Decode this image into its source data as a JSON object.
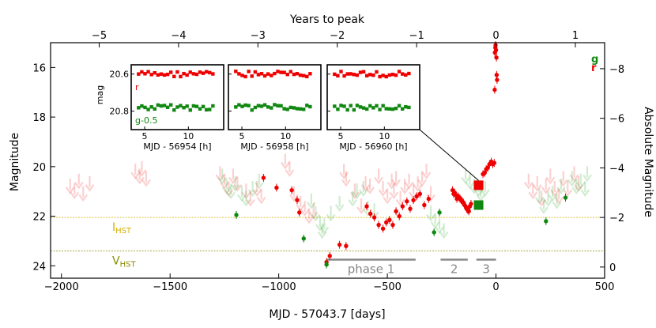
{
  "chart_data": {
    "type": "scatter",
    "xlabel": "MJD - 57043.7 [days]",
    "ylabel": "Magnitude",
    "ylabel_right": "Absolute Magnitude",
    "xlabel_top": "Years to peak",
    "xlim": [
      -2050,
      500
    ],
    "ylim": [
      24.5,
      15.0
    ],
    "yticks": [
      16,
      18,
      20,
      22,
      24
    ],
    "xticks": [
      -2000,
      -1500,
      -1000,
      -500,
      0,
      500
    ],
    "top_ticks": [
      -5,
      -4,
      -3,
      -2,
      -1,
      0,
      1
    ],
    "right_ticks": [
      -8,
      -6,
      -4,
      -2,
      0
    ],
    "reference_lines": [
      {
        "label": "I",
        "subscript": "HST",
        "mag": 22.05,
        "color": "#d4b000"
      },
      {
        "label": "V",
        "subscript": "HST",
        "mag": 23.4,
        "color": "#8a8a00"
      }
    ],
    "phases": [
      {
        "label": "phase 1",
        "x0": -780,
        "x1": -370
      },
      {
        "label": "2",
        "x0": -255,
        "x1": -130
      },
      {
        "label": "3",
        "x0": -90,
        "x1": 0
      }
    ],
    "series": [
      {
        "name": "r",
        "color": "#ee0000",
        "points": [
          [
            -1070,
            20.45
          ],
          [
            -1010,
            20.85
          ],
          [
            -940,
            20.95
          ],
          [
            -915,
            21.35
          ],
          [
            -905,
            21.85
          ],
          [
            -780,
            23.85
          ],
          [
            -765,
            23.6
          ],
          [
            -720,
            23.15
          ],
          [
            -690,
            23.2
          ],
          [
            -595,
            21.6
          ],
          [
            -578,
            21.9
          ],
          [
            -560,
            22.05
          ],
          [
            -540,
            22.35
          ],
          [
            -520,
            22.5
          ],
          [
            -505,
            22.25
          ],
          [
            -490,
            22.15
          ],
          [
            -475,
            22.35
          ],
          [
            -460,
            21.8
          ],
          [
            -445,
            22.0
          ],
          [
            -430,
            21.6
          ],
          [
            -410,
            21.4
          ],
          [
            -395,
            21.7
          ],
          [
            -380,
            21.35
          ],
          [
            -365,
            21.2
          ],
          [
            -350,
            21.1
          ],
          [
            -330,
            21.55
          ],
          [
            -310,
            21.3
          ],
          [
            -200,
            20.95
          ],
          [
            -195,
            21.1
          ],
          [
            -190,
            21.05
          ],
          [
            -185,
            21.15
          ],
          [
            -180,
            21.3
          ],
          [
            -175,
            21.2
          ],
          [
            -170,
            21.25
          ],
          [
            -165,
            21.3
          ],
          [
            -160,
            21.35
          ],
          [
            -155,
            21.4
          ],
          [
            -150,
            21.45
          ],
          [
            -145,
            21.55
          ],
          [
            -140,
            21.6
          ],
          [
            -135,
            21.7
          ],
          [
            -130,
            21.75
          ],
          [
            -125,
            21.8
          ],
          [
            -120,
            21.6
          ],
          [
            -115,
            21.5
          ],
          [
            -60,
            20.3
          ],
          [
            -52,
            20.25
          ],
          [
            -45,
            20.1
          ],
          [
            -38,
            20.05
          ],
          [
            -30,
            19.9
          ],
          [
            -22,
            19.8
          ],
          [
            -15,
            19.9
          ],
          [
            -8,
            19.85
          ],
          [
            -5,
            15.4
          ],
          [
            -3,
            15.2
          ],
          [
            -2,
            15.1
          ],
          [
            0,
            15.3
          ],
          [
            2,
            15.6
          ],
          [
            3,
            16.3
          ],
          [
            5,
            16.5
          ],
          [
            -6,
            16.9
          ]
        ]
      },
      {
        "name": "g",
        "color": "#118811",
        "points": [
          [
            -1195,
            21.95
          ],
          [
            -885,
            22.9
          ],
          [
            -285,
            22.65
          ],
          [
            -260,
            21.85
          ],
          [
            -780,
            23.95
          ],
          [
            230,
            22.2
          ],
          [
            320,
            21.25
          ]
        ]
      }
    ],
    "big_markers": [
      {
        "series": "r",
        "x": -80,
        "mag": 20.75
      },
      {
        "series": "g",
        "x": -80,
        "mag": 21.55
      }
    ],
    "upper_limits": {
      "r": [
        [
          -1960,
          20.8
        ],
        [
          -1940,
          21.0
        ],
        [
          -1920,
          20.6
        ],
        [
          -1900,
          21.1
        ],
        [
          -1870,
          20.7
        ],
        [
          -1660,
          20.2
        ],
        [
          -1640,
          20.4
        ],
        [
          -1630,
          20.1
        ],
        [
          -1610,
          20.5
        ],
        [
          -1270,
          20.3
        ],
        [
          -1250,
          20.6
        ],
        [
          -1230,
          20.9
        ],
        [
          -1210,
          20.4
        ],
        [
          -1190,
          20.7
        ],
        [
          -1150,
          21.0
        ],
        [
          -1130,
          21.3
        ],
        [
          -1100,
          20.9
        ],
        [
          -1080,
          21.2
        ],
        [
          -970,
          19.8
        ],
        [
          -950,
          20.1
        ],
        [
          -930,
          21.1
        ],
        [
          -900,
          21.5
        ],
        [
          -880,
          21.7
        ],
        [
          -860,
          22.0
        ],
        [
          -840,
          21.8
        ],
        [
          -700,
          20.2
        ],
        [
          -690,
          20.5
        ],
        [
          -650,
          21.0
        ],
        [
          -620,
          21.6
        ],
        [
          -600,
          20.7
        ],
        [
          -580,
          20.8
        ],
        [
          -540,
          20.4
        ],
        [
          -520,
          20.9
        ],
        [
          -500,
          21.2
        ],
        [
          -480,
          20.6
        ],
        [
          -470,
          21.0
        ],
        [
          -460,
          20.5
        ],
        [
          -440,
          21.3
        ],
        [
          -420,
          20.8
        ],
        [
          -400,
          20.6
        ],
        [
          -380,
          21.0
        ],
        [
          -360,
          20.7
        ],
        [
          -340,
          20.5
        ],
        [
          -320,
          20.2
        ],
        [
          -300,
          21.1
        ],
        [
          150,
          20.6
        ],
        [
          170,
          21.0
        ],
        [
          190,
          20.7
        ],
        [
          210,
          21.3
        ],
        [
          230,
          20.8
        ],
        [
          250,
          20.4
        ],
        [
          270,
          20.9
        ],
        [
          290,
          21.2
        ],
        [
          310,
          20.5
        ],
        [
          330,
          20.9
        ],
        [
          360,
          20.3
        ],
        [
          380,
          20.7
        ]
      ],
      "g": [
        [
          -1260,
          20.4
        ],
        [
          -1240,
          20.8
        ],
        [
          -1220,
          21.0
        ],
        [
          -1200,
          20.7
        ],
        [
          -1170,
          21.1
        ],
        [
          -1150,
          21.3
        ],
        [
          -1120,
          20.9
        ],
        [
          -1090,
          20.6
        ],
        [
          -850,
          21.4
        ],
        [
          -830,
          21.9
        ],
        [
          -810,
          22.3
        ],
        [
          -800,
          22.6
        ],
        [
          -790,
          22.4
        ],
        [
          -760,
          21.9
        ],
        [
          -720,
          21.5
        ],
        [
          -660,
          21.3
        ],
        [
          -640,
          21.0
        ],
        [
          -610,
          20.9
        ],
        [
          -590,
          21.7
        ],
        [
          -560,
          21.8
        ],
        [
          -300,
          21.9
        ],
        [
          -280,
          22.2
        ],
        [
          -260,
          22.4
        ],
        [
          -240,
          22.6
        ],
        [
          -140,
          20.4
        ],
        [
          -120,
          20.6
        ],
        [
          -100,
          20.8
        ],
        [
          -80,
          20.9
        ],
        [
          -70,
          21.1
        ],
        [
          -50,
          20.9
        ],
        [
          200,
          21.2
        ],
        [
          220,
          21.6
        ],
        [
          240,
          21.3
        ],
        [
          260,
          21.1
        ],
        [
          280,
          21.4
        ],
        [
          300,
          20.8
        ],
        [
          350,
          20.5
        ],
        [
          370,
          20.8
        ],
        [
          390,
          20.6
        ],
        [
          410,
          20.9
        ],
        [
          420,
          20.3
        ]
      ]
    },
    "legend_g": "g",
    "legend_r": "r",
    "insets": [
      {
        "xlabel": "MJD - 56954 [h]",
        "ylabel": "mag",
        "r_label": "r",
        "g_label": "g-0.5",
        "xticks": [
          5,
          10
        ]
      },
      {
        "xlabel": "MJD - 56958 [h]",
        "xticks": [
          5,
          10
        ]
      },
      {
        "xlabel": "MJD - 56960 [h]",
        "xticks": [
          5,
          10
        ]
      }
    ],
    "inset_ylim": [
      20.9,
      20.55
    ],
    "inset_yticks": [
      20.6,
      20.8
    ],
    "inset_tick_labels": [
      "20.6",
      "20.8"
    ]
  }
}
